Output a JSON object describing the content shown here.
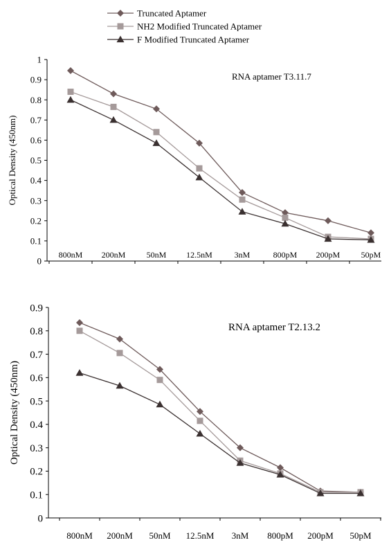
{
  "legend": {
    "placement": "top-center",
    "entries": [
      {
        "label": "Truncated Aptamer",
        "color": "#6e5a5a",
        "marker": "diamond"
      },
      {
        "label": "NH2 Modified Truncated Aptamer",
        "color": "#a59a9a",
        "marker": "square"
      },
      {
        "label": "F Modified Truncated Aptamer",
        "color": "#3a3030",
        "marker": "triangle"
      }
    ]
  },
  "chart_data": [
    {
      "type": "line",
      "title": "RNA aptamer T3.11.7",
      "xlabel": "",
      "ylabel": "Optical Density (450nm)",
      "categories": [
        "800nM",
        "200nM",
        "50nM",
        "12.5nM",
        "3nM",
        "800pM",
        "200pM",
        "50pM"
      ],
      "ylim": [
        0,
        1
      ],
      "yticks": [
        "0",
        "0.1",
        "0.2",
        "0.3",
        "0.4",
        "0.5",
        "0.6",
        "0.7",
        "0.8",
        "0.9",
        "1"
      ],
      "grid": false,
      "series": [
        {
          "name": "Truncated Aptamer",
          "color": "#6e5a5a",
          "marker": "diamond",
          "values": [
            0.945,
            0.83,
            0.755,
            0.585,
            0.34,
            0.24,
            0.2,
            0.14
          ]
        },
        {
          "name": "NH2 Modified Truncated Aptamer",
          "color": "#a59a9a",
          "marker": "square",
          "values": [
            0.84,
            0.765,
            0.64,
            0.46,
            0.305,
            0.215,
            0.12,
            0.11
          ]
        },
        {
          "name": "F Modified Truncated Aptamer",
          "color": "#3a3030",
          "marker": "triangle",
          "values": [
            0.8,
            0.7,
            0.585,
            0.415,
            0.245,
            0.185,
            0.11,
            0.105
          ]
        }
      ]
    },
    {
      "type": "line",
      "title": "RNA aptamer T2.13.2",
      "xlabel": "",
      "ylabel": "Optical Density (450nm)",
      "categories": [
        "800nM",
        "200nM",
        "50nM",
        "12.5nM",
        "3nM",
        "800pM",
        "200pM",
        "50pM"
      ],
      "ylim": [
        0,
        0.9
      ],
      "yticks": [
        "0",
        "0.1",
        "0.2",
        "0.3",
        "0.4",
        "0.5",
        "0.6",
        "0.7",
        "0.8",
        "0.9"
      ],
      "grid": false,
      "series": [
        {
          "name": "Truncated Aptamer",
          "color": "#6e5a5a",
          "marker": "diamond",
          "values": [
            0.835,
            0.765,
            0.635,
            0.455,
            0.3,
            0.215,
            0.115,
            0.11
          ]
        },
        {
          "name": "NH2 Modified Truncated Aptamer",
          "color": "#a59a9a",
          "marker": "square",
          "values": [
            0.8,
            0.705,
            0.59,
            0.415,
            0.245,
            0.19,
            0.11,
            0.11
          ]
        },
        {
          "name": "F Modified Truncated Aptamer",
          "color": "#3a3030",
          "marker": "triangle",
          "values": [
            0.62,
            0.565,
            0.485,
            0.36,
            0.235,
            0.185,
            0.105,
            0.105
          ]
        }
      ]
    }
  ]
}
